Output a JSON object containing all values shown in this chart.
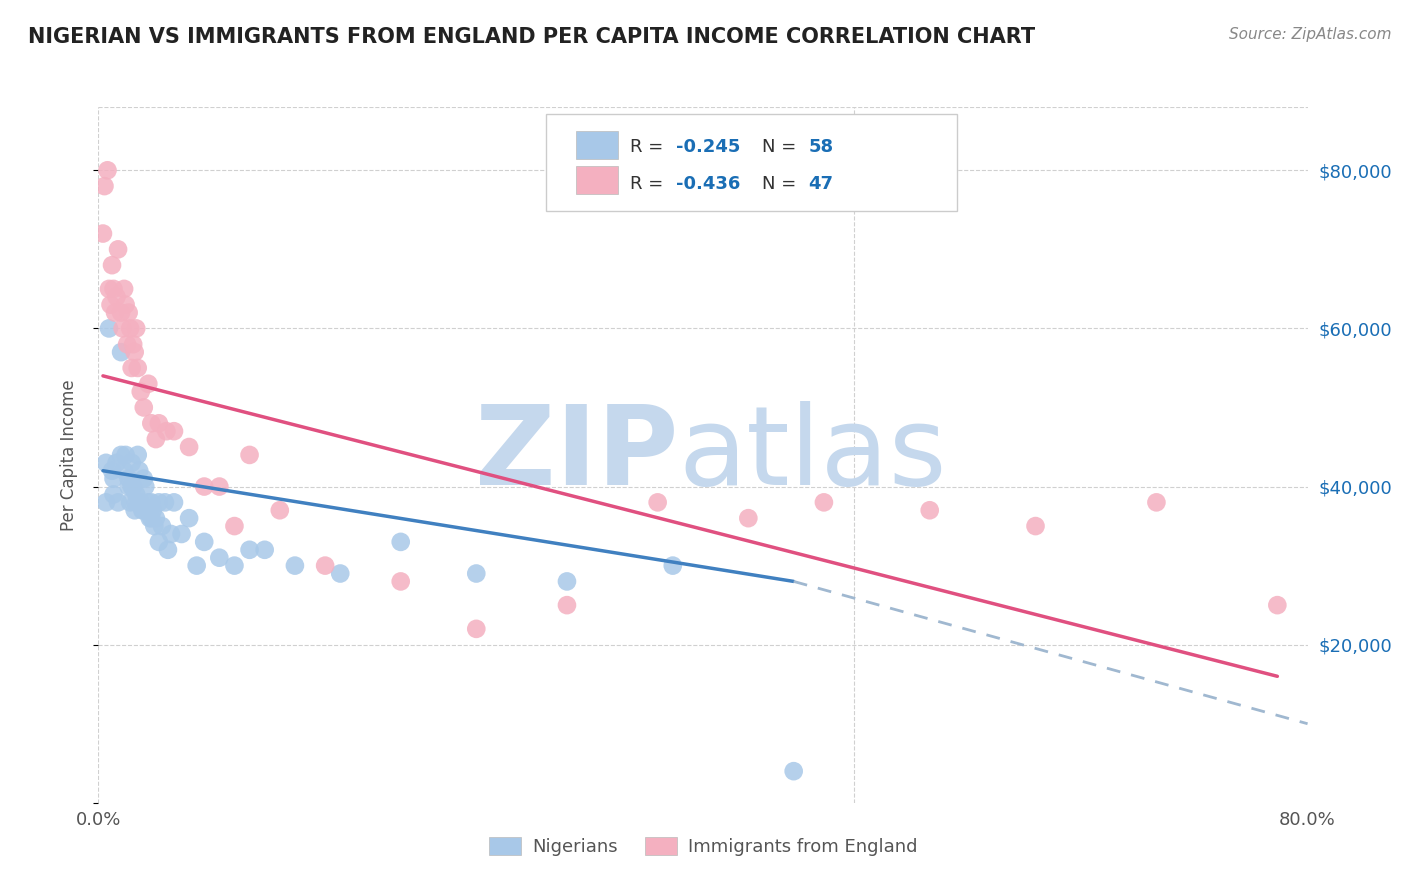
{
  "title": "NIGERIAN VS IMMIGRANTS FROM ENGLAND PER CAPITA INCOME CORRELATION CHART",
  "source": "Source: ZipAtlas.com",
  "ylabel": "Per Capita Income",
  "yticks": [
    0,
    20000,
    40000,
    60000,
    80000
  ],
  "ytick_labels": [
    "",
    "$20,000",
    "$40,000",
    "$60,000",
    "$80,000"
  ],
  "xticks": [
    0.0,
    0.1,
    0.2,
    0.3,
    0.4,
    0.5,
    0.6,
    0.7,
    0.8
  ],
  "xtick_labels": [
    "0.0%",
    "",
    "",
    "",
    "",
    "",
    "",
    "",
    "80.0%"
  ],
  "xmin": 0.0,
  "xmax": 0.8,
  "ymin": 0,
  "ymax": 88000,
  "blue_scatter_color": "#a8c8e8",
  "pink_scatter_color": "#f4b0c0",
  "blue_line_color": "#4080c0",
  "pink_line_color": "#e05080",
  "dashed_color": "#a0b8d0",
  "legend_black": "#333333",
  "legend_blue": "#1a6eb5",
  "grid_color": "#d0d0d0",
  "title_color": "#222222",
  "source_color": "#888888",
  "ytick_color": "#1a6eb5",
  "xtick_color": "#555555",
  "ylabel_color": "#555555",
  "watermark_zip_color": "#c5d8ed",
  "watermark_atlas_color": "#c5d8ed",
  "nigerians_x": [
    0.005,
    0.005,
    0.007,
    0.009,
    0.01,
    0.01,
    0.012,
    0.013,
    0.015,
    0.015,
    0.017,
    0.018,
    0.02,
    0.02,
    0.021,
    0.022,
    0.022,
    0.023,
    0.024,
    0.025,
    0.025,
    0.026,
    0.027,
    0.028,
    0.029,
    0.03,
    0.03,
    0.031,
    0.032,
    0.033,
    0.034,
    0.035,
    0.035,
    0.036,
    0.037,
    0.038,
    0.04,
    0.04,
    0.042,
    0.044,
    0.046,
    0.048,
    0.05,
    0.055,
    0.06,
    0.065,
    0.07,
    0.08,
    0.09,
    0.1,
    0.11,
    0.13,
    0.16,
    0.2,
    0.25,
    0.31,
    0.38,
    0.46
  ],
  "nigerians_y": [
    38000,
    43000,
    60000,
    42000,
    41000,
    39000,
    43000,
    38000,
    44000,
    57000,
    42000,
    44000,
    40000,
    41000,
    38000,
    40000,
    43000,
    40000,
    37000,
    39000,
    38000,
    44000,
    42000,
    38000,
    37000,
    41000,
    37000,
    40000,
    37000,
    38000,
    36000,
    38000,
    36000,
    37000,
    35000,
    36000,
    38000,
    33000,
    35000,
    38000,
    32000,
    34000,
    38000,
    34000,
    36000,
    30000,
    33000,
    31000,
    30000,
    32000,
    32000,
    30000,
    29000,
    33000,
    29000,
    28000,
    30000,
    4000
  ],
  "england_x": [
    0.003,
    0.004,
    0.006,
    0.007,
    0.008,
    0.009,
    0.01,
    0.011,
    0.012,
    0.013,
    0.015,
    0.016,
    0.017,
    0.018,
    0.019,
    0.02,
    0.021,
    0.022,
    0.023,
    0.024,
    0.025,
    0.026,
    0.028,
    0.03,
    0.033,
    0.035,
    0.038,
    0.04,
    0.045,
    0.05,
    0.06,
    0.07,
    0.08,
    0.09,
    0.1,
    0.12,
    0.15,
    0.2,
    0.25,
    0.31,
    0.37,
    0.43,
    0.48,
    0.55,
    0.62,
    0.7,
    0.78
  ],
  "england_y": [
    72000,
    78000,
    80000,
    65000,
    63000,
    68000,
    65000,
    62000,
    64000,
    70000,
    62000,
    60000,
    65000,
    63000,
    58000,
    62000,
    60000,
    55000,
    58000,
    57000,
    60000,
    55000,
    52000,
    50000,
    53000,
    48000,
    46000,
    48000,
    47000,
    47000,
    45000,
    40000,
    40000,
    35000,
    44000,
    37000,
    30000,
    28000,
    22000,
    25000,
    38000,
    36000,
    38000,
    37000,
    35000,
    38000,
    25000
  ],
  "blue_trend_xstart": 0.003,
  "blue_trend_xend": 0.46,
  "blue_trend_ystart": 42000,
  "blue_trend_yend": 28000,
  "pink_trend_xstart": 0.003,
  "pink_trend_xend": 0.78,
  "pink_trend_ystart": 54000,
  "pink_trend_yend": 16000,
  "dash_xstart": 0.46,
  "dash_xend": 0.8,
  "dash_ystart": 28000,
  "dash_yend": 10000
}
